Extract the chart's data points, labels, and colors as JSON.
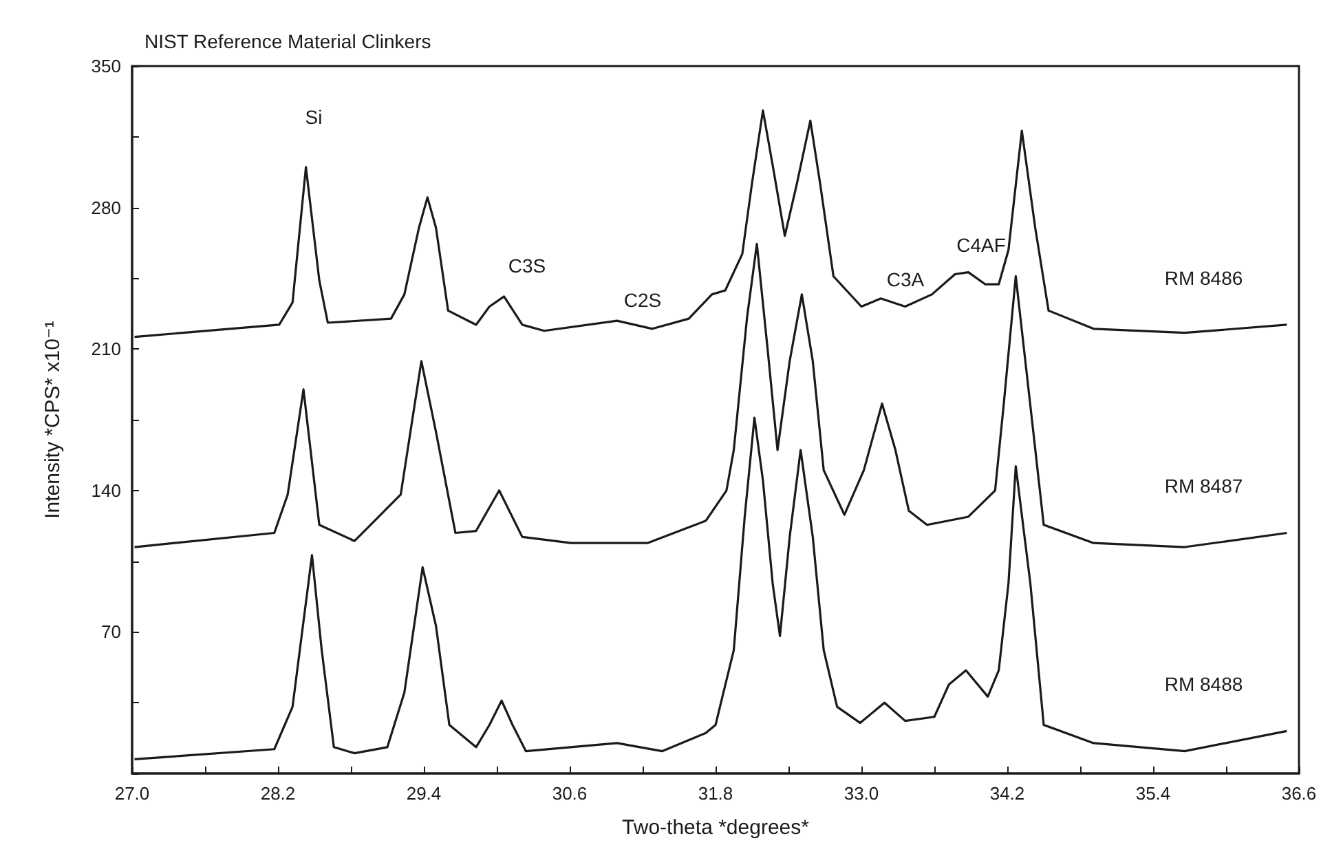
{
  "chart_data": {
    "type": "line",
    "title": "NIST Reference Material Clinkers",
    "xlabel": "Two-theta *degrees*",
    "ylabel": "Intensity *CPS* x10⁻¹",
    "xlim": [
      27.0,
      36.6
    ],
    "xticks": [
      {
        "value": 27.0,
        "label": "27.0"
      },
      {
        "value": 27.6,
        "label": null
      },
      {
        "value": 28.2,
        "label": "28.2"
      },
      {
        "value": 28.8,
        "label": null
      },
      {
        "value": 29.4,
        "label": "29.4"
      },
      {
        "value": 30.0,
        "label": null
      },
      {
        "value": 30.6,
        "label": "30.6"
      },
      {
        "value": 31.2,
        "label": null
      },
      {
        "value": 31.8,
        "label": "31.8"
      },
      {
        "value": 32.4,
        "label": null
      },
      {
        "value": 33.0,
        "label": "33.0"
      },
      {
        "value": 33.6,
        "label": null
      },
      {
        "value": 34.2,
        "label": "34.2"
      },
      {
        "value": 34.8,
        "label": null
      },
      {
        "value": 35.4,
        "label": "35.4"
      },
      {
        "value": 36.0,
        "label": null
      },
      {
        "value": 36.6,
        "label": "36.6"
      }
    ],
    "ylim": [
      0,
      350
    ],
    "yticks": [
      {
        "value": 0,
        "label": null
      },
      {
        "value": 35,
        "label": null
      },
      70,
      {
        "value": 105,
        "label": null
      },
      140,
      {
        "value": 175,
        "label": null
      },
      210,
      {
        "value": 245,
        "label": null
      },
      280,
      {
        "value": 315,
        "label": null
      },
      350
    ],
    "legend": false,
    "grid": false,
    "marker": "none",
    "line_style": "solid",
    "series": [
      {
        "name": "RM 8486",
        "color": "#1a1a1a",
        "x": [
          27.02,
          28.21,
          28.32,
          28.43,
          28.54,
          28.61,
          29.13,
          29.24,
          29.36,
          29.43,
          29.5,
          29.6,
          29.83,
          29.94,
          30.06,
          30.21,
          30.39,
          30.99,
          31.28,
          31.58,
          31.77,
          31.88,
          32.02,
          32.1,
          32.19,
          32.27,
          32.37,
          32.47,
          32.58,
          32.66,
          32.77,
          33.0,
          33.16,
          33.36,
          33.58,
          33.77,
          33.88,
          34.02,
          34.13,
          34.21,
          34.32,
          34.43,
          34.54,
          34.91,
          35.66,
          36.5
        ],
        "values": [
          216,
          222,
          233,
          300,
          244,
          223,
          225,
          237,
          270,
          285,
          270,
          229,
          222,
          231,
          236,
          222,
          219,
          224,
          220,
          225,
          237,
          239,
          257,
          292,
          328,
          301,
          266,
          292,
          323,
          292,
          246,
          231,
          235,
          231,
          237,
          247,
          248,
          242,
          242,
          259,
          318,
          270,
          229,
          220,
          218,
          222
        ]
      },
      {
        "name": "RM 8487",
        "color": "#1a1a1a",
        "x": [
          27.02,
          28.17,
          28.28,
          28.41,
          28.54,
          28.83,
          29.21,
          29.38,
          29.5,
          29.66,
          29.83,
          30.02,
          30.21,
          30.61,
          31.24,
          31.72,
          31.89,
          31.95,
          32.06,
          32.14,
          32.23,
          32.31,
          32.41,
          32.51,
          32.6,
          32.69,
          32.86,
          33.02,
          33.17,
          33.28,
          33.39,
          33.54,
          33.88,
          34.1,
          34.17,
          34.27,
          34.39,
          34.5,
          34.91,
          35.66,
          36.5
        ],
        "values": [
          112,
          119,
          138,
          190,
          123,
          115,
          138,
          204,
          169,
          119,
          120,
          140,
          117,
          114,
          114,
          125,
          140,
          160,
          226,
          262,
          209,
          160,
          204,
          237,
          204,
          150,
          128,
          150,
          183,
          160,
          130,
          123,
          127,
          140,
          182,
          246,
          182,
          123,
          114,
          112,
          119
        ]
      },
      {
        "name": "RM 8488",
        "color": "#1a1a1a",
        "x": [
          27.02,
          28.17,
          28.32,
          28.48,
          28.56,
          28.66,
          28.83,
          29.1,
          29.24,
          29.39,
          29.5,
          29.61,
          29.83,
          29.94,
          30.04,
          30.13,
          30.24,
          30.99,
          31.36,
          31.72,
          31.8,
          31.95,
          32.04,
          32.12,
          32.19,
          32.27,
          32.33,
          32.41,
          32.5,
          32.6,
          32.69,
          32.8,
          32.99,
          33.19,
          33.36,
          33.6,
          33.72,
          33.86,
          34.04,
          34.13,
          34.21,
          34.27,
          34.39,
          34.5,
          34.91,
          35.66,
          36.5
        ],
        "values": [
          7,
          12,
          33,
          108,
          61,
          13,
          10,
          13,
          40,
          102,
          73,
          24,
          13,
          24,
          36,
          24,
          11,
          15,
          11,
          20,
          24,
          61,
          127,
          176,
          145,
          94,
          68,
          117,
          160,
          117,
          61,
          33,
          25,
          35,
          26,
          28,
          44,
          51,
          38,
          51,
          94,
          152,
          94,
          24,
          15,
          11,
          21
        ]
      }
    ],
    "annotations": [
      "Si",
      "C3S",
      "C2S",
      "C3A",
      "C4AF"
    ]
  }
}
